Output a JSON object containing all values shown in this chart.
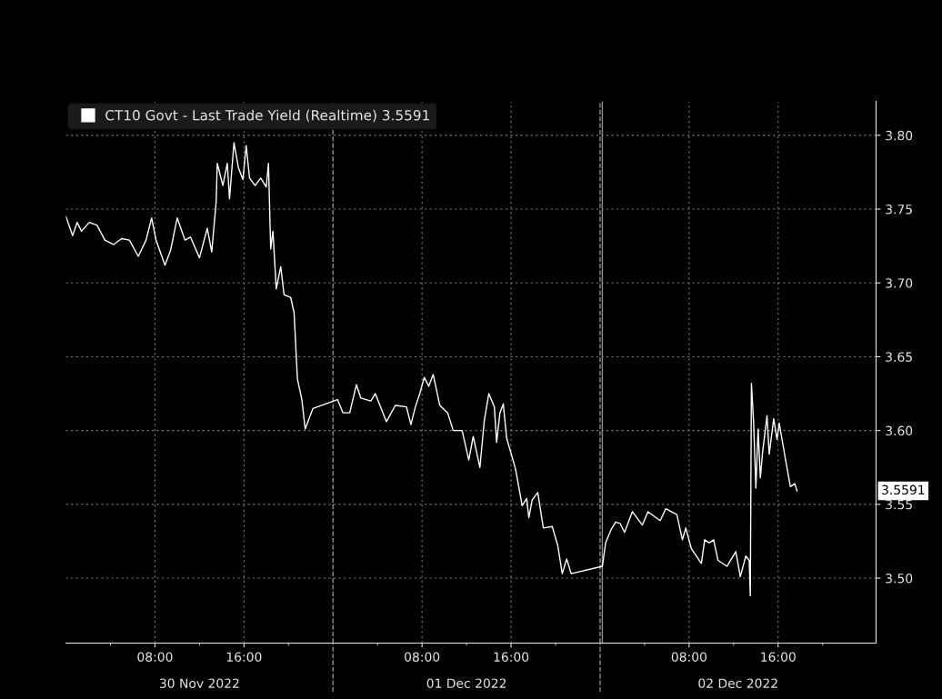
{
  "chart_data": {
    "type": "line",
    "legend": "top left",
    "grid": true,
    "line_style": "solid",
    "xlim": [
      "2022-11-30T00:00",
      "2022-12-03T00:48"
    ],
    "ylim": [
      3.456,
      3.823
    ],
    "xticks": [
      {
        "value": "2022-11-30T04:00",
        "label": null
      },
      {
        "value": "2022-11-30T08:00",
        "label": "08:00"
      },
      {
        "value": "2022-11-30T12:00",
        "label": null
      },
      {
        "value": "2022-11-30T16:00",
        "label": "16:00"
      },
      {
        "value": "2022-11-30T20:00",
        "label": null
      },
      {
        "value": "2022-12-01T04:00",
        "label": null
      },
      {
        "value": "2022-12-01T08:00",
        "label": "08:00"
      },
      {
        "value": "2022-12-01T12:00",
        "label": null
      },
      {
        "value": "2022-12-01T16:00",
        "label": "16:00"
      },
      {
        "value": "2022-12-01T20:00",
        "label": null
      },
      {
        "value": "2022-12-02T04:00",
        "label": null
      },
      {
        "value": "2022-12-02T08:00",
        "label": "08:00"
      },
      {
        "value": "2022-12-02T12:00",
        "label": null
      },
      {
        "value": "2022-12-02T16:00",
        "label": "16:00"
      },
      {
        "value": "2022-12-02T20:00",
        "label": null
      }
    ],
    "yticks": [
      {
        "value": 3.5,
        "label": "3.50"
      },
      {
        "value": 3.55,
        "label": "3.55"
      },
      {
        "value": 3.6,
        "label": "3.60"
      },
      {
        "value": 3.65,
        "label": "3.65"
      },
      {
        "value": 3.7,
        "label": "3.70"
      },
      {
        "value": 3.75,
        "label": "3.75"
      },
      {
        "value": 3.8,
        "label": "3.80"
      }
    ],
    "ref_lines": [
      {
        "axis": "x",
        "value": "2022-12-01T00:00",
        "color": "#8c8c8c",
        "line_style": "dashed"
      },
      {
        "axis": "x",
        "value": "2022-12-02T00:00",
        "color": "#8c8c8c",
        "line_style": "dashed"
      },
      {
        "axis": "x",
        "value": "2022-12-02T00:12",
        "color": "#8c8c8c",
        "line_style": "solid"
      }
    ],
    "annotations": [
      "30 Nov 2022",
      "01 Dec 2022",
      "02 Dec 2022",
      "3.5591"
    ],
    "series": [
      {
        "name": "CT10 Govt - Last Trade Yield (Realtime) 3.5591",
        "color": "#ffffff",
        "x": [
          "2022-11-30T00:00",
          "2022-11-30T00:36",
          "2022-11-30T01:00",
          "2022-11-30T01:24",
          "2022-11-30T02:06",
          "2022-11-30T02:48",
          "2022-11-30T03:30",
          "2022-11-30T04:18",
          "2022-11-30T05:00",
          "2022-11-30T05:42",
          "2022-11-30T06:30",
          "2022-11-30T07:12",
          "2022-11-30T07:42",
          "2022-11-30T08:06",
          "2022-11-30T08:54",
          "2022-11-30T09:24",
          "2022-11-30T10:00",
          "2022-11-30T10:42",
          "2022-11-30T11:12",
          "2022-11-30T12:00",
          "2022-11-30T12:42",
          "2022-11-30T13:06",
          "2022-11-30T13:30",
          "2022-11-30T13:36",
          "2022-11-30T14:06",
          "2022-11-30T14:30",
          "2022-11-30T14:42",
          "2022-11-30T15:06",
          "2022-11-30T15:30",
          "2022-11-30T15:54",
          "2022-11-30T16:12",
          "2022-11-30T16:30",
          "2022-11-30T17:00",
          "2022-11-30T17:30",
          "2022-11-30T18:00",
          "2022-11-30T18:12",
          "2022-11-30T18:24",
          "2022-11-30T18:36",
          "2022-11-30T18:54",
          "2022-11-30T19:18",
          "2022-11-30T19:36",
          "2022-11-30T20:12",
          "2022-11-30T20:30",
          "2022-11-30T20:48",
          "2022-11-30T21:12",
          "2022-11-30T21:30",
          "2022-11-30T22:12",
          "2022-12-01T00:24",
          "2022-12-01T00:54",
          "2022-12-01T01:30",
          "2022-12-01T02:06",
          "2022-12-01T02:30",
          "2022-12-01T03:24",
          "2022-12-01T03:48",
          "2022-12-01T04:48",
          "2022-12-01T05:36",
          "2022-12-01T06:36",
          "2022-12-01T07:00",
          "2022-12-01T07:24",
          "2022-12-01T07:48",
          "2022-12-01T08:12",
          "2022-12-01T08:36",
          "2022-12-01T09:00",
          "2022-12-01T09:36",
          "2022-12-01T10:18",
          "2022-12-01T10:48",
          "2022-12-01T11:36",
          "2022-12-01T12:12",
          "2022-12-01T12:36",
          "2022-12-01T13:12",
          "2022-12-01T13:36",
          "2022-12-01T14:00",
          "2022-12-01T14:30",
          "2022-12-01T14:42",
          "2022-12-01T15:00",
          "2022-12-01T15:18",
          "2022-12-01T15:36",
          "2022-12-01T16:24",
          "2022-12-01T17:00",
          "2022-12-01T17:24",
          "2022-12-01T17:36",
          "2022-12-01T17:54",
          "2022-12-01T18:24",
          "2022-12-01T18:54",
          "2022-12-01T19:42",
          "2022-12-01T20:12",
          "2022-12-01T20:36",
          "2022-12-01T21:00",
          "2022-12-01T21:24",
          "2022-12-02T00:12",
          "2022-12-02T00:30",
          "2022-12-02T01:00",
          "2022-12-02T01:24",
          "2022-12-02T01:48",
          "2022-12-02T02:12",
          "2022-12-02T02:54",
          "2022-12-02T03:48",
          "2022-12-02T04:18",
          "2022-12-02T05:24",
          "2022-12-02T05:54",
          "2022-12-02T06:54",
          "2022-12-02T07:24",
          "2022-12-02T07:42",
          "2022-12-02T08:12",
          "2022-12-02T09:06",
          "2022-12-02T09:24",
          "2022-12-02T09:48",
          "2022-12-02T10:12",
          "2022-12-02T10:36",
          "2022-12-02T11:24",
          "2022-12-02T12:12",
          "2022-12-02T12:36",
          "2022-12-02T13:06",
          "2022-12-02T13:24",
          "2022-12-02T13:30",
          "2022-12-02T13:36",
          "2022-12-02T13:48",
          "2022-12-02T14:00",
          "2022-12-02T14:12",
          "2022-12-02T14:24",
          "2022-12-02T14:36",
          "2022-12-02T15:00",
          "2022-12-02T15:12",
          "2022-12-02T15:36",
          "2022-12-02T15:54",
          "2022-12-02T16:06",
          "2022-12-02T16:36",
          "2022-12-02T17:06",
          "2022-12-02T17:30",
          "2022-12-02T17:42"
        ],
        "values": [
          3.745,
          3.732,
          3.741,
          3.735,
          3.741,
          3.739,
          3.729,
          3.726,
          3.73,
          3.729,
          3.718,
          3.729,
          3.744,
          3.729,
          3.712,
          3.722,
          3.744,
          3.729,
          3.731,
          3.717,
          3.737,
          3.721,
          3.755,
          3.781,
          3.766,
          3.781,
          3.757,
          3.795,
          3.778,
          3.77,
          3.793,
          3.771,
          3.766,
          3.771,
          3.765,
          3.781,
          3.723,
          3.735,
          3.696,
          3.711,
          3.692,
          3.69,
          3.68,
          3.635,
          3.621,
          3.601,
          3.615,
          3.621,
          3.612,
          3.612,
          3.631,
          3.622,
          3.62,
          3.625,
          3.606,
          3.617,
          3.616,
          3.604,
          3.616,
          3.625,
          3.636,
          3.63,
          3.638,
          3.617,
          3.612,
          3.6,
          3.6,
          3.58,
          3.596,
          3.575,
          3.607,
          3.625,
          3.616,
          3.592,
          3.612,
          3.618,
          3.595,
          3.574,
          3.549,
          3.554,
          3.541,
          3.553,
          3.558,
          3.534,
          3.535,
          3.522,
          3.503,
          3.513,
          3.503,
          3.508,
          3.524,
          3.533,
          3.538,
          3.537,
          3.531,
          3.545,
          3.536,
          3.545,
          3.539,
          3.547,
          3.543,
          3.526,
          3.534,
          3.52,
          3.51,
          3.526,
          3.524,
          3.526,
          3.512,
          3.508,
          3.518,
          3.501,
          3.515,
          3.512,
          3.488,
          3.632,
          3.605,
          3.561,
          3.601,
          3.568,
          3.585,
          3.61,
          3.584,
          3.608,
          3.594,
          3.605,
          3.583,
          3.562,
          3.564,
          3.5591
        ]
      }
    ]
  }
}
